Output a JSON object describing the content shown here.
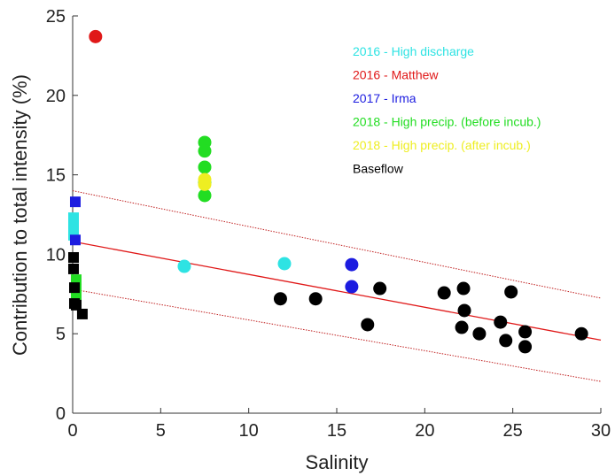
{
  "chart_data": {
    "type": "scatter",
    "xlabel": "Salinity",
    "ylabel": "Contribution to total intensity (%)",
    "xlim": [
      0,
      30
    ],
    "ylim": [
      0,
      25
    ],
    "xticks": [
      0,
      5,
      10,
      15,
      20,
      25,
      30
    ],
    "yticks": [
      0,
      5,
      10,
      15,
      20,
      25
    ],
    "series": [
      {
        "name": "2016 - High discharge",
        "color": "#2ee3e3",
        "x": [
          6.34,
          12.03,
          0.05,
          0.05,
          0.05,
          0.05
        ],
        "y": [
          9.24,
          9.41,
          12.3,
          11.9,
          11.5,
          11.2
        ],
        "markers": [
          "o",
          "o",
          "s",
          "s",
          "s",
          "s"
        ]
      },
      {
        "name": "2016 - Matthew",
        "color": "#e01818",
        "x": [
          1.3
        ],
        "y": [
          23.7
        ],
        "markers": [
          "o"
        ]
      },
      {
        "name": "2017 - Irma",
        "color": "#1c1ce0",
        "x": [
          0.15,
          0.15,
          15.85,
          15.85
        ],
        "y": [
          13.3,
          10.9,
          9.35,
          7.96
        ],
        "markers": [
          "s",
          "s",
          "o",
          "o"
        ]
      },
      {
        "name": "2018 - High precip. (before incub.)",
        "color": "#22dd22",
        "x": [
          7.5,
          7.5,
          7.5,
          7.5,
          7.5,
          0.2,
          0.2,
          0.2,
          0.2
        ],
        "y": [
          17.04,
          16.5,
          15.48,
          14.48,
          13.7,
          8.4,
          7.8,
          7.3,
          7.1
        ],
        "markers": [
          "o",
          "o",
          "o",
          "o",
          "o",
          "s",
          "s",
          "s",
          "s"
        ]
      },
      {
        "name": "2018 - High precip. (after incub.)",
        "color": "#eeee22",
        "x": [
          7.5,
          7.5
        ],
        "y": [
          14.7,
          14.4
        ],
        "markers": [
          "o",
          "o"
        ]
      },
      {
        "name": "Baseflow",
        "color": "#000000",
        "x": [
          0.05,
          0.05,
          0.1,
          0.1,
          0.2,
          0.55,
          11.8,
          13.8,
          16.75,
          17.45,
          21.1,
          22.2,
          22.25,
          22.1,
          23.1,
          24.3,
          24.6,
          24.9,
          25.7,
          25.7,
          28.9
        ],
        "y": [
          9.8,
          9.08,
          7.9,
          6.9,
          6.8,
          6.24,
          7.2,
          7.2,
          5.57,
          7.85,
          7.57,
          7.85,
          6.46,
          5.4,
          5.0,
          5.73,
          4.57,
          7.63,
          5.12,
          4.18,
          5.0
        ],
        "markers": [
          "s",
          "s",
          "s",
          "s",
          "s",
          "s",
          "o",
          "o",
          "o",
          "o",
          "o",
          "o",
          "o",
          "o",
          "o",
          "o",
          "o",
          "o",
          "o",
          "o",
          "o"
        ]
      }
    ],
    "fit": {
      "color": "#e01818",
      "x": [
        0,
        30
      ],
      "y": [
        10.8,
        4.6
      ]
    },
    "bounds": [
      {
        "color": "#c02020",
        "x": [
          0,
          30
        ],
        "y": [
          14.0,
          7.24
        ]
      },
      {
        "color": "#c02020",
        "x": [
          0,
          30
        ],
        "y": [
          7.8,
          2.0
        ]
      }
    ]
  }
}
